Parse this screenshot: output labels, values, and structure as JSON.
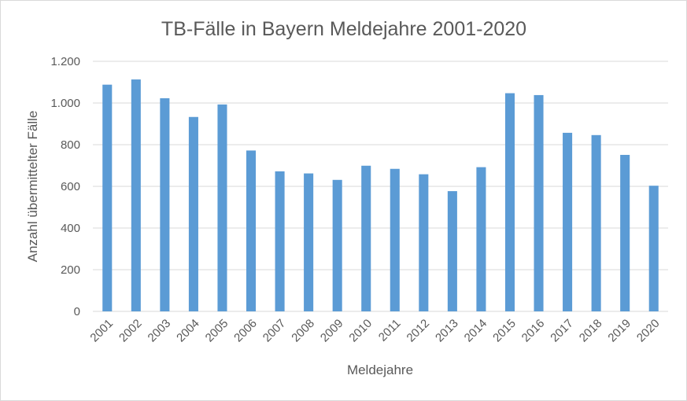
{
  "chart_data": {
    "type": "bar",
    "title": "TB-Fälle in Bayern Meldejahre 2001-2020",
    "xlabel": "Meldejahre",
    "ylabel": "Anzahl übermittelter Fälle",
    "categories": [
      "2001",
      "2002",
      "2003",
      "2004",
      "2005",
      "2006",
      "2007",
      "2008",
      "2009",
      "2010",
      "2011",
      "2012",
      "2013",
      "2014",
      "2015",
      "2016",
      "2017",
      "2018",
      "2019",
      "2020"
    ],
    "values": [
      1088,
      1113,
      1023,
      933,
      993,
      772,
      672,
      662,
      631,
      699,
      684,
      658,
      577,
      692,
      1047,
      1038,
      857,
      846,
      751,
      603
    ],
    "ylim": [
      0,
      1200
    ],
    "yticks": [
      0,
      200,
      400,
      600,
      800,
      1000,
      1200
    ],
    "ytick_labels": [
      "0",
      "200",
      "400",
      "600",
      "800",
      "1.000",
      "1.200"
    ],
    "grid": true,
    "legend": "none",
    "bar_color": "#5b9bd5"
  }
}
